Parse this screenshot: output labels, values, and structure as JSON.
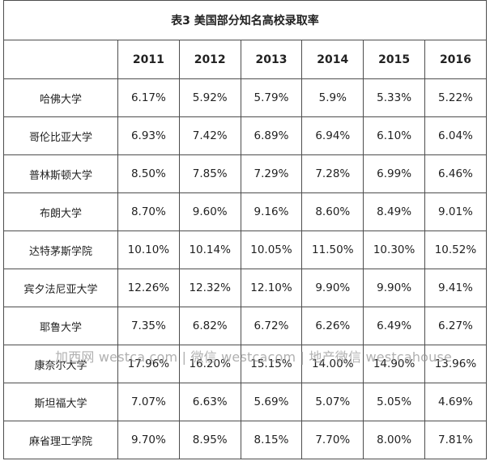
{
  "title": "表3 美国部分知名高校录取率",
  "years": [
    "2011",
    "2012",
    "2013",
    "2014",
    "2015",
    "2016"
  ],
  "rows": [
    {
      "name": "哈佛大学",
      "values": [
        "6.17%",
        "5.92%",
        "5.79%",
        "5.9%",
        "5.33%",
        "5.22%"
      ]
    },
    {
      "name": "哥伦比亚大学",
      "values": [
        "6.93%",
        "7.42%",
        "6.89%",
        "6.94%",
        "6.10%",
        "6.04%"
      ]
    },
    {
      "name": "普林斯顿大学",
      "values": [
        "8.50%",
        "7.85%",
        "7.29%",
        "7.28%",
        "6.99%",
        "6.46%"
      ]
    },
    {
      "name": "布朗大学",
      "values": [
        "8.70%",
        "9.60%",
        "9.16%",
        "8.60%",
        "8.49%",
        "9.01%"
      ]
    },
    {
      "name": "达特茅斯学院",
      "values": [
        "10.10%",
        "10.14%",
        "10.05%",
        "11.50%",
        "10.30%",
        "10.52%"
      ]
    },
    {
      "name": "宾夕法尼亚大学",
      "values": [
        "12.26%",
        "12.32%",
        "12.10%",
        "9.90%",
        "9.90%",
        "9.41%"
      ]
    },
    {
      "name": "耶鲁大学",
      "values": [
        "7.35%",
        "6.82%",
        "6.72%",
        "6.26%",
        "6.49%",
        "6.27%"
      ]
    },
    {
      "name": "康奈尔大学",
      "values": [
        "17.96%",
        "16.20%",
        "15.15%",
        "14.00%",
        "14.90%",
        "13.96%"
      ]
    },
    {
      "name": "斯坦福大学",
      "values": [
        "7.07%",
        "6.63%",
        "5.69%",
        "5.07%",
        "5.05%",
        "4.69%"
      ]
    },
    {
      "name": "麻省理工学院",
      "values": [
        "9.70%",
        "8.95%",
        "8.15%",
        "7.70%",
        "8.00%",
        "7.81%"
      ]
    }
  ],
  "watermark": "加西网 westca.com | 微信 westcacom | 地产微信 westcahouse"
}
